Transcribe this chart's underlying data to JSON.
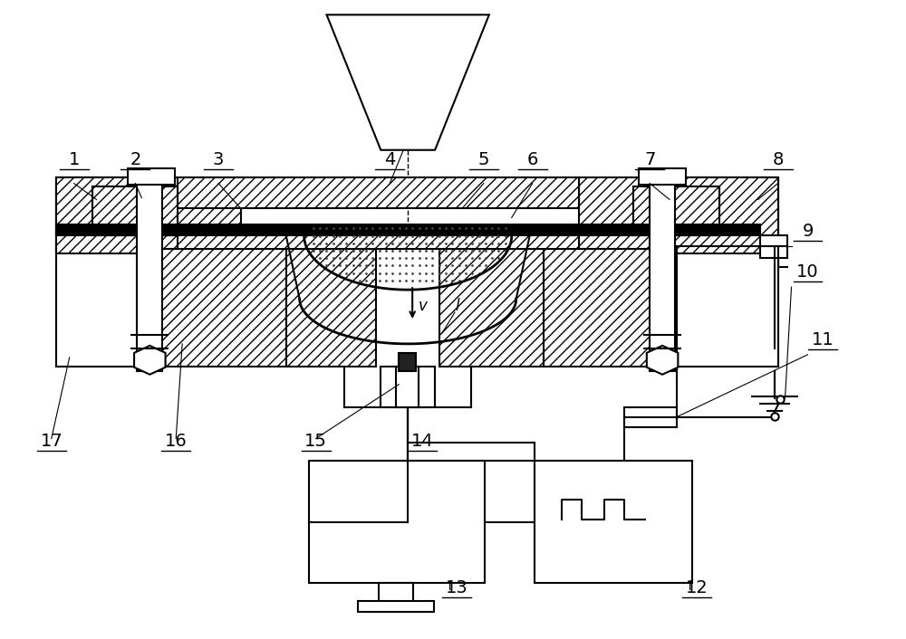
{
  "bg_color": "#ffffff",
  "line_color": "#000000",
  "figsize": [
    10.0,
    7.06
  ],
  "dpi": 100,
  "label_fontsize": 14
}
